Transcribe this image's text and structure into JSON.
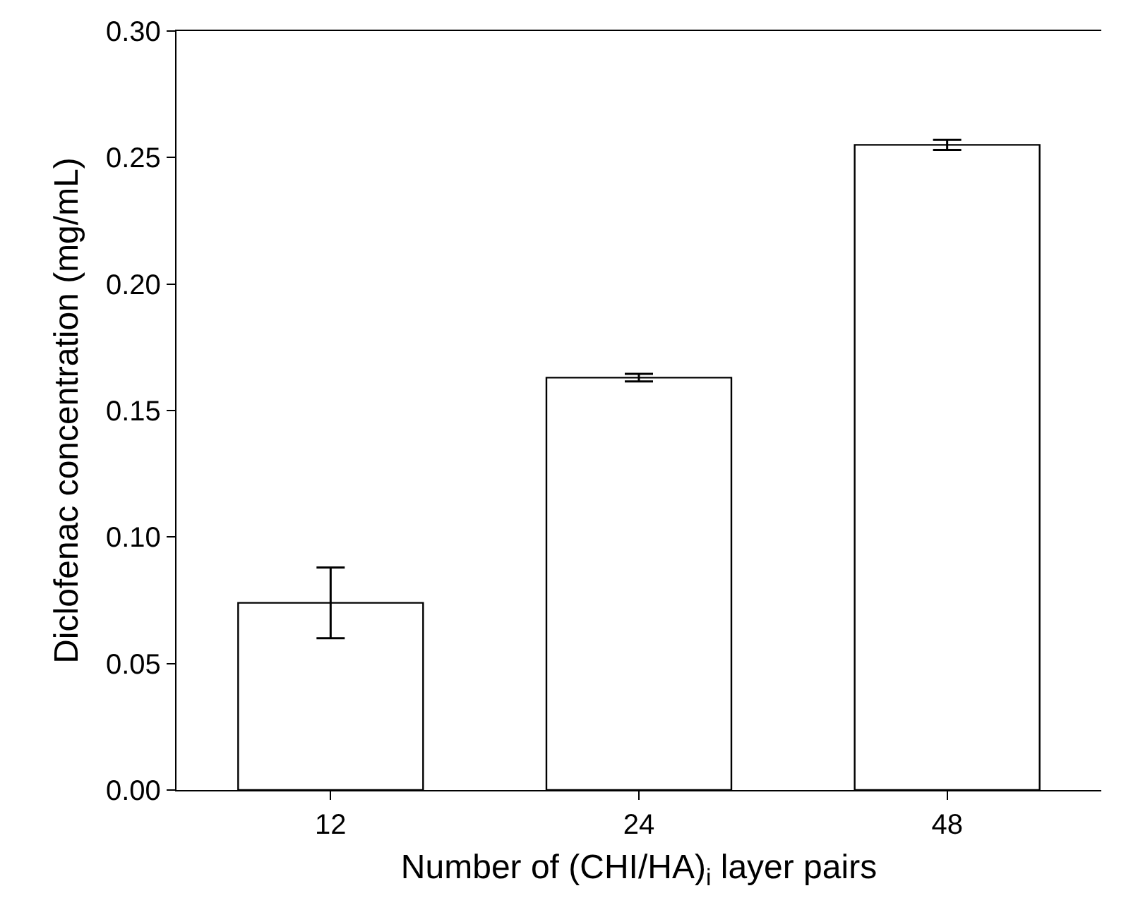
{
  "chart_data": {
    "type": "bar",
    "xlabel": "Number of (CHI/HA)$_{i}$ layer pairs",
    "ylabel": "Diclofenac concentration (mg/mL)",
    "categories": [
      "12",
      "24",
      "48"
    ],
    "values": [
      0.074,
      0.163,
      0.255
    ],
    "errors": [
      0.014,
      0.0015,
      0.002
    ],
    "color": "#ffffff",
    "ylim": [
      0,
      0.3
    ],
    "yticks": [
      {
        "value": 0,
        "label": "0.00"
      },
      {
        "value": 0.05,
        "label": "0.05"
      },
      {
        "value": 0.1,
        "label": "0.10"
      },
      {
        "value": 0.15,
        "label": "0.15"
      },
      {
        "value": 0.2,
        "label": "0.20"
      },
      {
        "value": 0.25,
        "label": "0.25"
      },
      {
        "value": 0.3,
        "label": "0.30"
      }
    ],
    "grid": false
  }
}
